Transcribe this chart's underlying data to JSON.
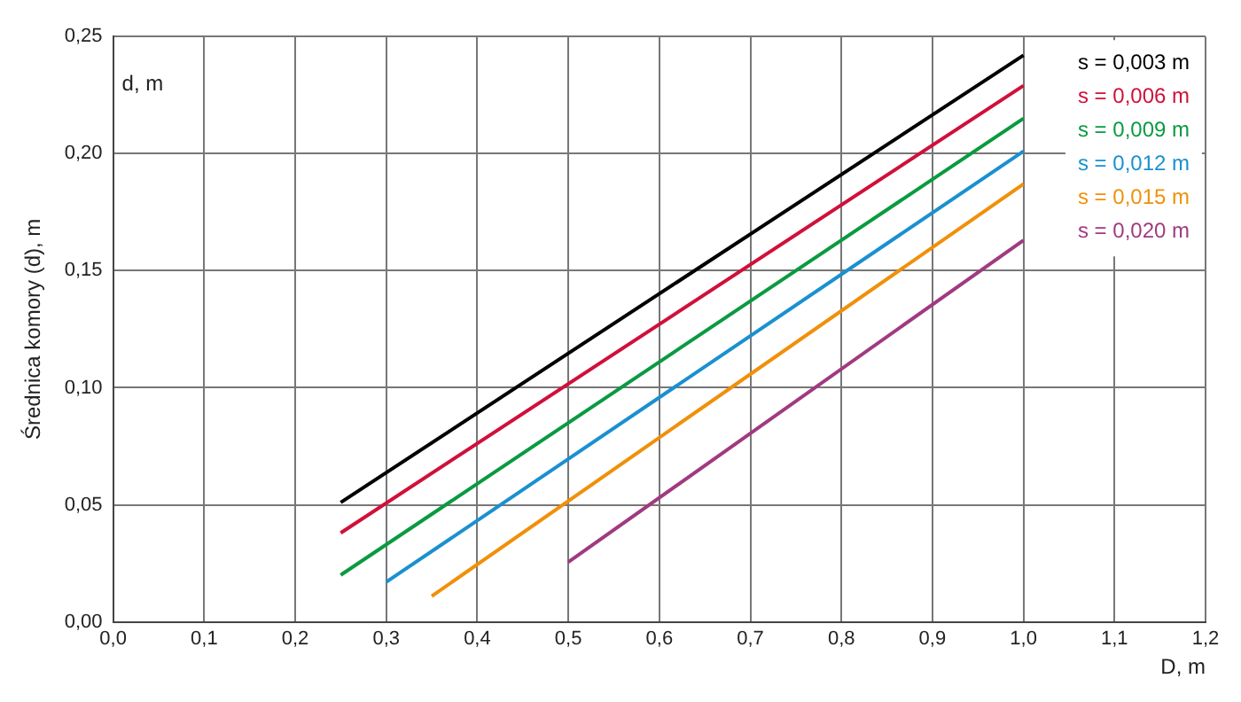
{
  "chart_data": {
    "type": "line",
    "ylabel": "Średnica komory (d), m",
    "xlabel": "D, m",
    "annotations": [
      "d, m"
    ],
    "xlim": [
      0,
      1.2
    ],
    "xticks": [
      {
        "value": 0,
        "label": "0,0"
      },
      {
        "value": 0.1,
        "label": "0,1"
      },
      {
        "value": 0.2,
        "label": "0,2"
      },
      {
        "value": 0.3,
        "label": "0,3"
      },
      {
        "value": 0.4,
        "label": "0,4"
      },
      {
        "value": 0.5,
        "label": "0,5"
      },
      {
        "value": 0.6,
        "label": "0,6"
      },
      {
        "value": 0.7,
        "label": "0,7"
      },
      {
        "value": 0.8,
        "label": "0,8"
      },
      {
        "value": 0.9,
        "label": "0,9"
      },
      {
        "value": 1.0,
        "label": "1,0"
      },
      {
        "value": 1.1,
        "label": "1,1"
      },
      {
        "value": 1.2,
        "label": "1,2"
      }
    ],
    "ylim": [
      0,
      0.25
    ],
    "yticks": [
      {
        "value": 0,
        "label": "0,00"
      },
      {
        "value": 0.05,
        "label": "0,05"
      },
      {
        "value": 0.1,
        "label": "0,10"
      },
      {
        "value": 0.15,
        "label": "0,15"
      },
      {
        "value": 0.2,
        "label": "0,20"
      },
      {
        "value": 0.25,
        "label": "0,25"
      }
    ],
    "grid": true,
    "legend": "top right",
    "marker": "none",
    "line_style": "solid",
    "series": [
      {
        "name": "s = 0,003 m",
        "color": "#000000",
        "x": [
          0.25,
          1.0
        ],
        "values": [
          0.051,
          0.242
        ]
      },
      {
        "name": "s = 0,006 m",
        "color": "#d0103a",
        "x": [
          0.25,
          1.0
        ],
        "values": [
          0.038,
          0.229
        ]
      },
      {
        "name": "s = 0,009 m",
        "color": "#0a9a40",
        "x": [
          0.25,
          1.0
        ],
        "values": [
          0.02,
          0.215
        ]
      },
      {
        "name": "s = 0,012 m",
        "color": "#1a90d0",
        "x": [
          0.3,
          1.0
        ],
        "values": [
          0.017,
          0.201
        ]
      },
      {
        "name": "s = 0,015 m",
        "color": "#f0900a",
        "x": [
          0.35,
          1.0
        ],
        "values": [
          0.011,
          0.187
        ]
      },
      {
        "name": "s = 0,020 m",
        "color": "#a03a80",
        "x": [
          0.5,
          1.0
        ],
        "values": [
          0.0255,
          0.163
        ]
      }
    ]
  }
}
